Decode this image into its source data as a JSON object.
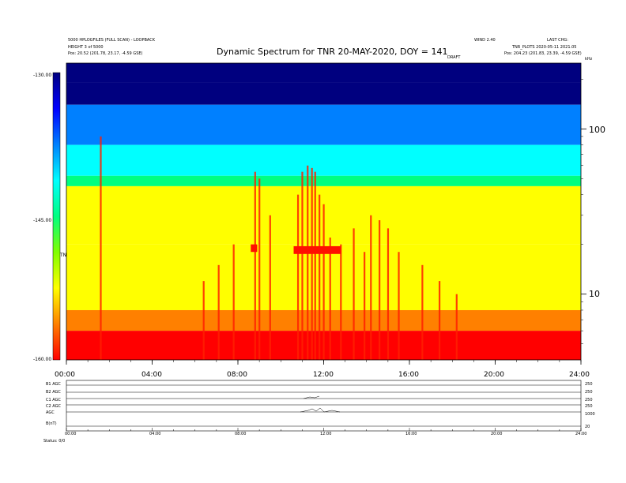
{
  "header": {
    "left_line1": "5000 HPLOGFILES (FULL SCAN) - LOOPBACK",
    "left_line2": "HEIGHT 3 of 5000",
    "left_pos": "Pos: 20.52 (201.78, 23.17, -4.59 GSE)",
    "right_line1": "WIND 2.40",
    "right_line2": "LAST CHG:",
    "right_line3": "TNR_PLOTS 2020-05-11 2021.05",
    "right_pos": "Pos: 204.23 (201.83, 23.39, -4.59 GSE)",
    "title": "Dynamic Spectrum for TNR 20-MAY-2020, DOY = 141",
    "center_tag": "DRAFT",
    "mhz_label": "kHz"
  },
  "colorbar": {
    "label": "TNR",
    "tick_labels": [
      "-130.00",
      "-145.00",
      "-160.00"
    ]
  },
  "chart_data": {
    "type": "heatmap",
    "title": "Dynamic Spectrum for TNR 20-MAY-2020, DOY = 141",
    "x_tick_labels": [
      "00:00",
      "04:00",
      "08:00",
      "12:00",
      "16:00",
      "20:00",
      "24:00"
    ],
    "x_range_hours": [
      0,
      24
    ],
    "y_scale": "log",
    "y_tick_labels": [
      "100",
      "10"
    ],
    "y_range_khz": [
      4,
      250
    ],
    "colorbar_range_db": [
      -160,
      -130
    ],
    "colormap": [
      "#00007f",
      "#0000ff",
      "#0080ff",
      "#00ffff",
      "#00ff80",
      "#80ff00",
      "#ffff00",
      "#ff8000",
      "#ff0000"
    ],
    "intensity_bands": [
      {
        "f_low": 190,
        "f_high": 250,
        "level": -128.5
      },
      {
        "f_low": 140,
        "f_high": 190,
        "level": -130.5
      },
      {
        "f_low": 80,
        "f_high": 140,
        "level": -137.5
      },
      {
        "f_low": 52,
        "f_high": 80,
        "level": -141.5
      },
      {
        "f_low": 45,
        "f_high": 52,
        "level": -146
      },
      {
        "f_low": 20,
        "f_high": 45,
        "level": -152
      },
      {
        "f_low": 8,
        "f_high": 20,
        "level": -153.5
      },
      {
        "f_low": 6,
        "f_high": 8,
        "level": -155.5
      },
      {
        "f_low": 4,
        "f_high": 6,
        "level": -158.5
      }
    ],
    "bursts": [
      {
        "t": 1.6,
        "f_top": 90,
        "f_bottom": 4
      },
      {
        "t": 6.4,
        "f_top": 12,
        "f_bottom": 4
      },
      {
        "t": 7.1,
        "f_top": 15,
        "f_bottom": 4
      },
      {
        "t": 7.8,
        "f_top": 20,
        "f_bottom": 4
      },
      {
        "t": 8.8,
        "f_top": 55,
        "f_bottom": 4
      },
      {
        "t": 9.0,
        "f_top": 50,
        "f_bottom": 4
      },
      {
        "t": 9.5,
        "f_top": 30,
        "f_bottom": 4
      },
      {
        "t": 10.8,
        "f_top": 40,
        "f_bottom": 4
      },
      {
        "t": 11.0,
        "f_top": 55,
        "f_bottom": 4
      },
      {
        "t": 11.25,
        "f_top": 60,
        "f_bottom": 4
      },
      {
        "t": 11.45,
        "f_top": 58,
        "f_bottom": 4
      },
      {
        "t": 11.6,
        "f_top": 55,
        "f_bottom": 4
      },
      {
        "t": 11.8,
        "f_top": 40,
        "f_bottom": 4
      },
      {
        "t": 12.0,
        "f_top": 35,
        "f_bottom": 4
      },
      {
        "t": 12.3,
        "f_top": 22,
        "f_bottom": 4
      },
      {
        "t": 12.8,
        "f_top": 20,
        "f_bottom": 4
      },
      {
        "t": 13.4,
        "f_top": 25,
        "f_bottom": 4
      },
      {
        "t": 13.9,
        "f_top": 18,
        "f_bottom": 4
      },
      {
        "t": 14.2,
        "f_top": 30,
        "f_bottom": 4
      },
      {
        "t": 14.6,
        "f_top": 28,
        "f_bottom": 4
      },
      {
        "t": 15.0,
        "f_top": 25,
        "f_bottom": 4
      },
      {
        "t": 15.5,
        "f_top": 18,
        "f_bottom": 4
      },
      {
        "t": 16.6,
        "f_top": 15,
        "f_bottom": 4
      },
      {
        "t": 17.4,
        "f_top": 12,
        "f_bottom": 4
      },
      {
        "t": 18.2,
        "f_top": 10,
        "f_bottom": 4
      }
    ],
    "patches": [
      {
        "t_start": 10.6,
        "t_end": 12.8,
        "f_low": 17.5,
        "f_high": 19.5
      },
      {
        "t_start": 8.6,
        "t_end": 8.9,
        "f_low": 18,
        "f_high": 20
      }
    ]
  },
  "bottom_panel": {
    "row_labels": [
      "B1 AGC",
      "B2 AGC",
      "C1 AGC",
      "C2 AGC",
      "AGC",
      "B(nT)"
    ],
    "right_labels": [
      "250",
      "250",
      "250",
      "250",
      "1000",
      "20"
    ],
    "x_tick_labels": [
      "00:00",
      "04:00",
      "08:00",
      "12:00",
      "16:00",
      "20:00",
      "24:00"
    ],
    "footer": "Status: 0/0"
  }
}
